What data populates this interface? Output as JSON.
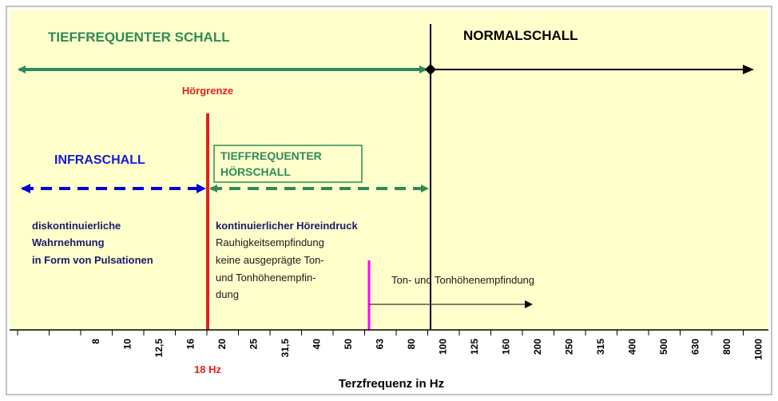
{
  "header": {
    "left": "TIEFFREQUENTER SCHALL",
    "right": "NORMALSCHALL"
  },
  "limit_label": "Hörgrenze",
  "infra": {
    "title": "INFRASCHALL",
    "lines": [
      "diskontinuierliche",
      "Wahrnehmung",
      "in Form von Pulsationen"
    ]
  },
  "low_audible": {
    "title": [
      "TIEFFREQUENTER",
      "HÖRSCHALL"
    ],
    "heading": "kontinuierlicher Höreindruck",
    "lines": [
      "Rauhigkeitsempfindung",
      "keine ausgeprägte Ton-",
      "und Tonhöhenempfin-",
      "dung"
    ]
  },
  "tone": "Ton- und Tonhöhenempfindung",
  "axis": {
    "ticks": [
      "8",
      "10",
      "12,5",
      "16",
      "20",
      "25",
      "31,5",
      "40",
      "50",
      "63",
      "80",
      "100",
      "125",
      "160",
      "200",
      "250",
      "315",
      "400",
      "500",
      "630",
      "800",
      "1000"
    ],
    "marker": "18 Hz",
    "title": "Terzfrequenz in Hz"
  }
}
